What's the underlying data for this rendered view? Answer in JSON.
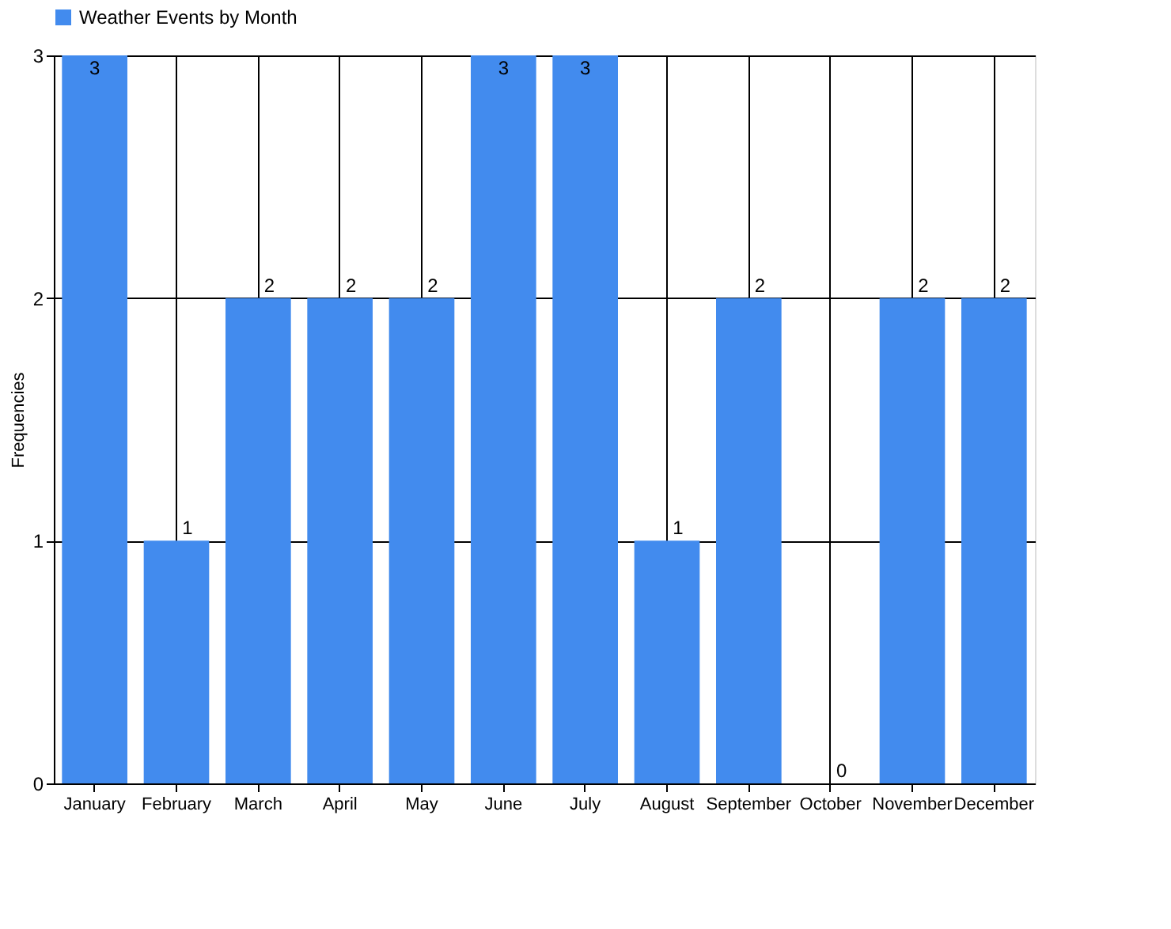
{
  "chart_data": {
    "type": "bar",
    "ylabel": "Frequencies",
    "categories": [
      "January",
      "February",
      "March",
      "April",
      "May",
      "June",
      "July",
      "August",
      "September",
      "October",
      "November",
      "December"
    ],
    "series": [
      {
        "name": "Weather Events by Month",
        "color": "#428bee",
        "values": [
          3,
          1,
          2,
          2,
          2,
          3,
          3,
          1,
          2,
          0,
          2,
          2
        ]
      }
    ],
    "ylim": [
      0,
      3
    ],
    "yticks": [
      0,
      1,
      2,
      3
    ],
    "grid": true,
    "legend": "top left",
    "data_labels": true
  }
}
